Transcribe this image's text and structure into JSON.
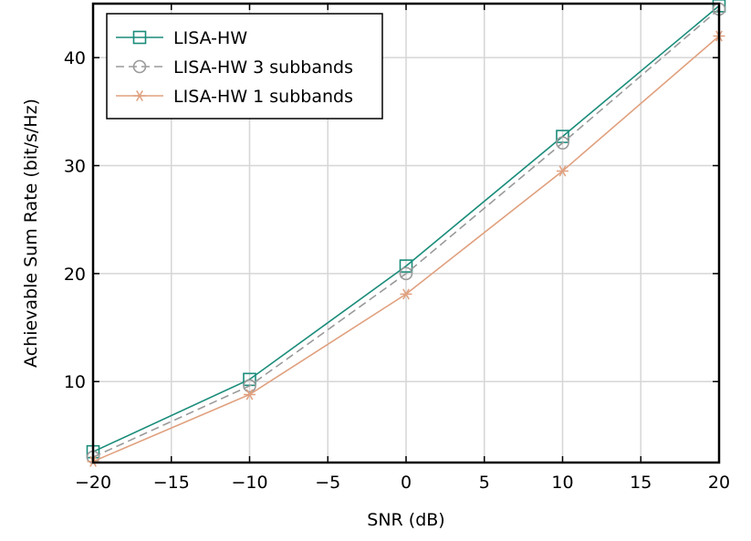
{
  "chart_data": {
    "type": "line",
    "title": "",
    "xlabel": "SNR (dB)",
    "ylabel": "Achievable Sum Rate (bit/s/Hz)",
    "xlim": [
      -20,
      20
    ],
    "ylim": [
      2.5,
      45
    ],
    "x_ticks": [
      -20,
      -15,
      -10,
      -5,
      0,
      5,
      10,
      15,
      20
    ],
    "x_tick_labels": [
      "−20",
      "−15",
      "−10",
      "−5",
      "0",
      "5",
      "10",
      "15",
      "20"
    ],
    "y_ticks": [
      10,
      20,
      30,
      40
    ],
    "y_tick_labels": [
      "10",
      "20",
      "30",
      "40"
    ],
    "grid": true,
    "legend_position": "top-left",
    "x": [
      -20,
      -10,
      0,
      10,
      20
    ],
    "series": [
      {
        "name": "LISA-HW",
        "values": [
          3.5,
          10.2,
          20.7,
          32.7,
          44.8
        ],
        "color": "#1a8c7a",
        "marker": "square",
        "dash": "solid"
      },
      {
        "name": "LISA-HW 3 subbands",
        "values": [
          3.0,
          9.6,
          20.0,
          32.1,
          44.5
        ],
        "color": "#9a9a9a",
        "marker": "circle",
        "dash": "dashed"
      },
      {
        "name": "LISA-HW 1 subbands",
        "values": [
          2.6,
          8.8,
          18.1,
          29.5,
          42.0
        ],
        "color": "#e0a07e",
        "marker": "star",
        "dash": "solid"
      }
    ]
  }
}
